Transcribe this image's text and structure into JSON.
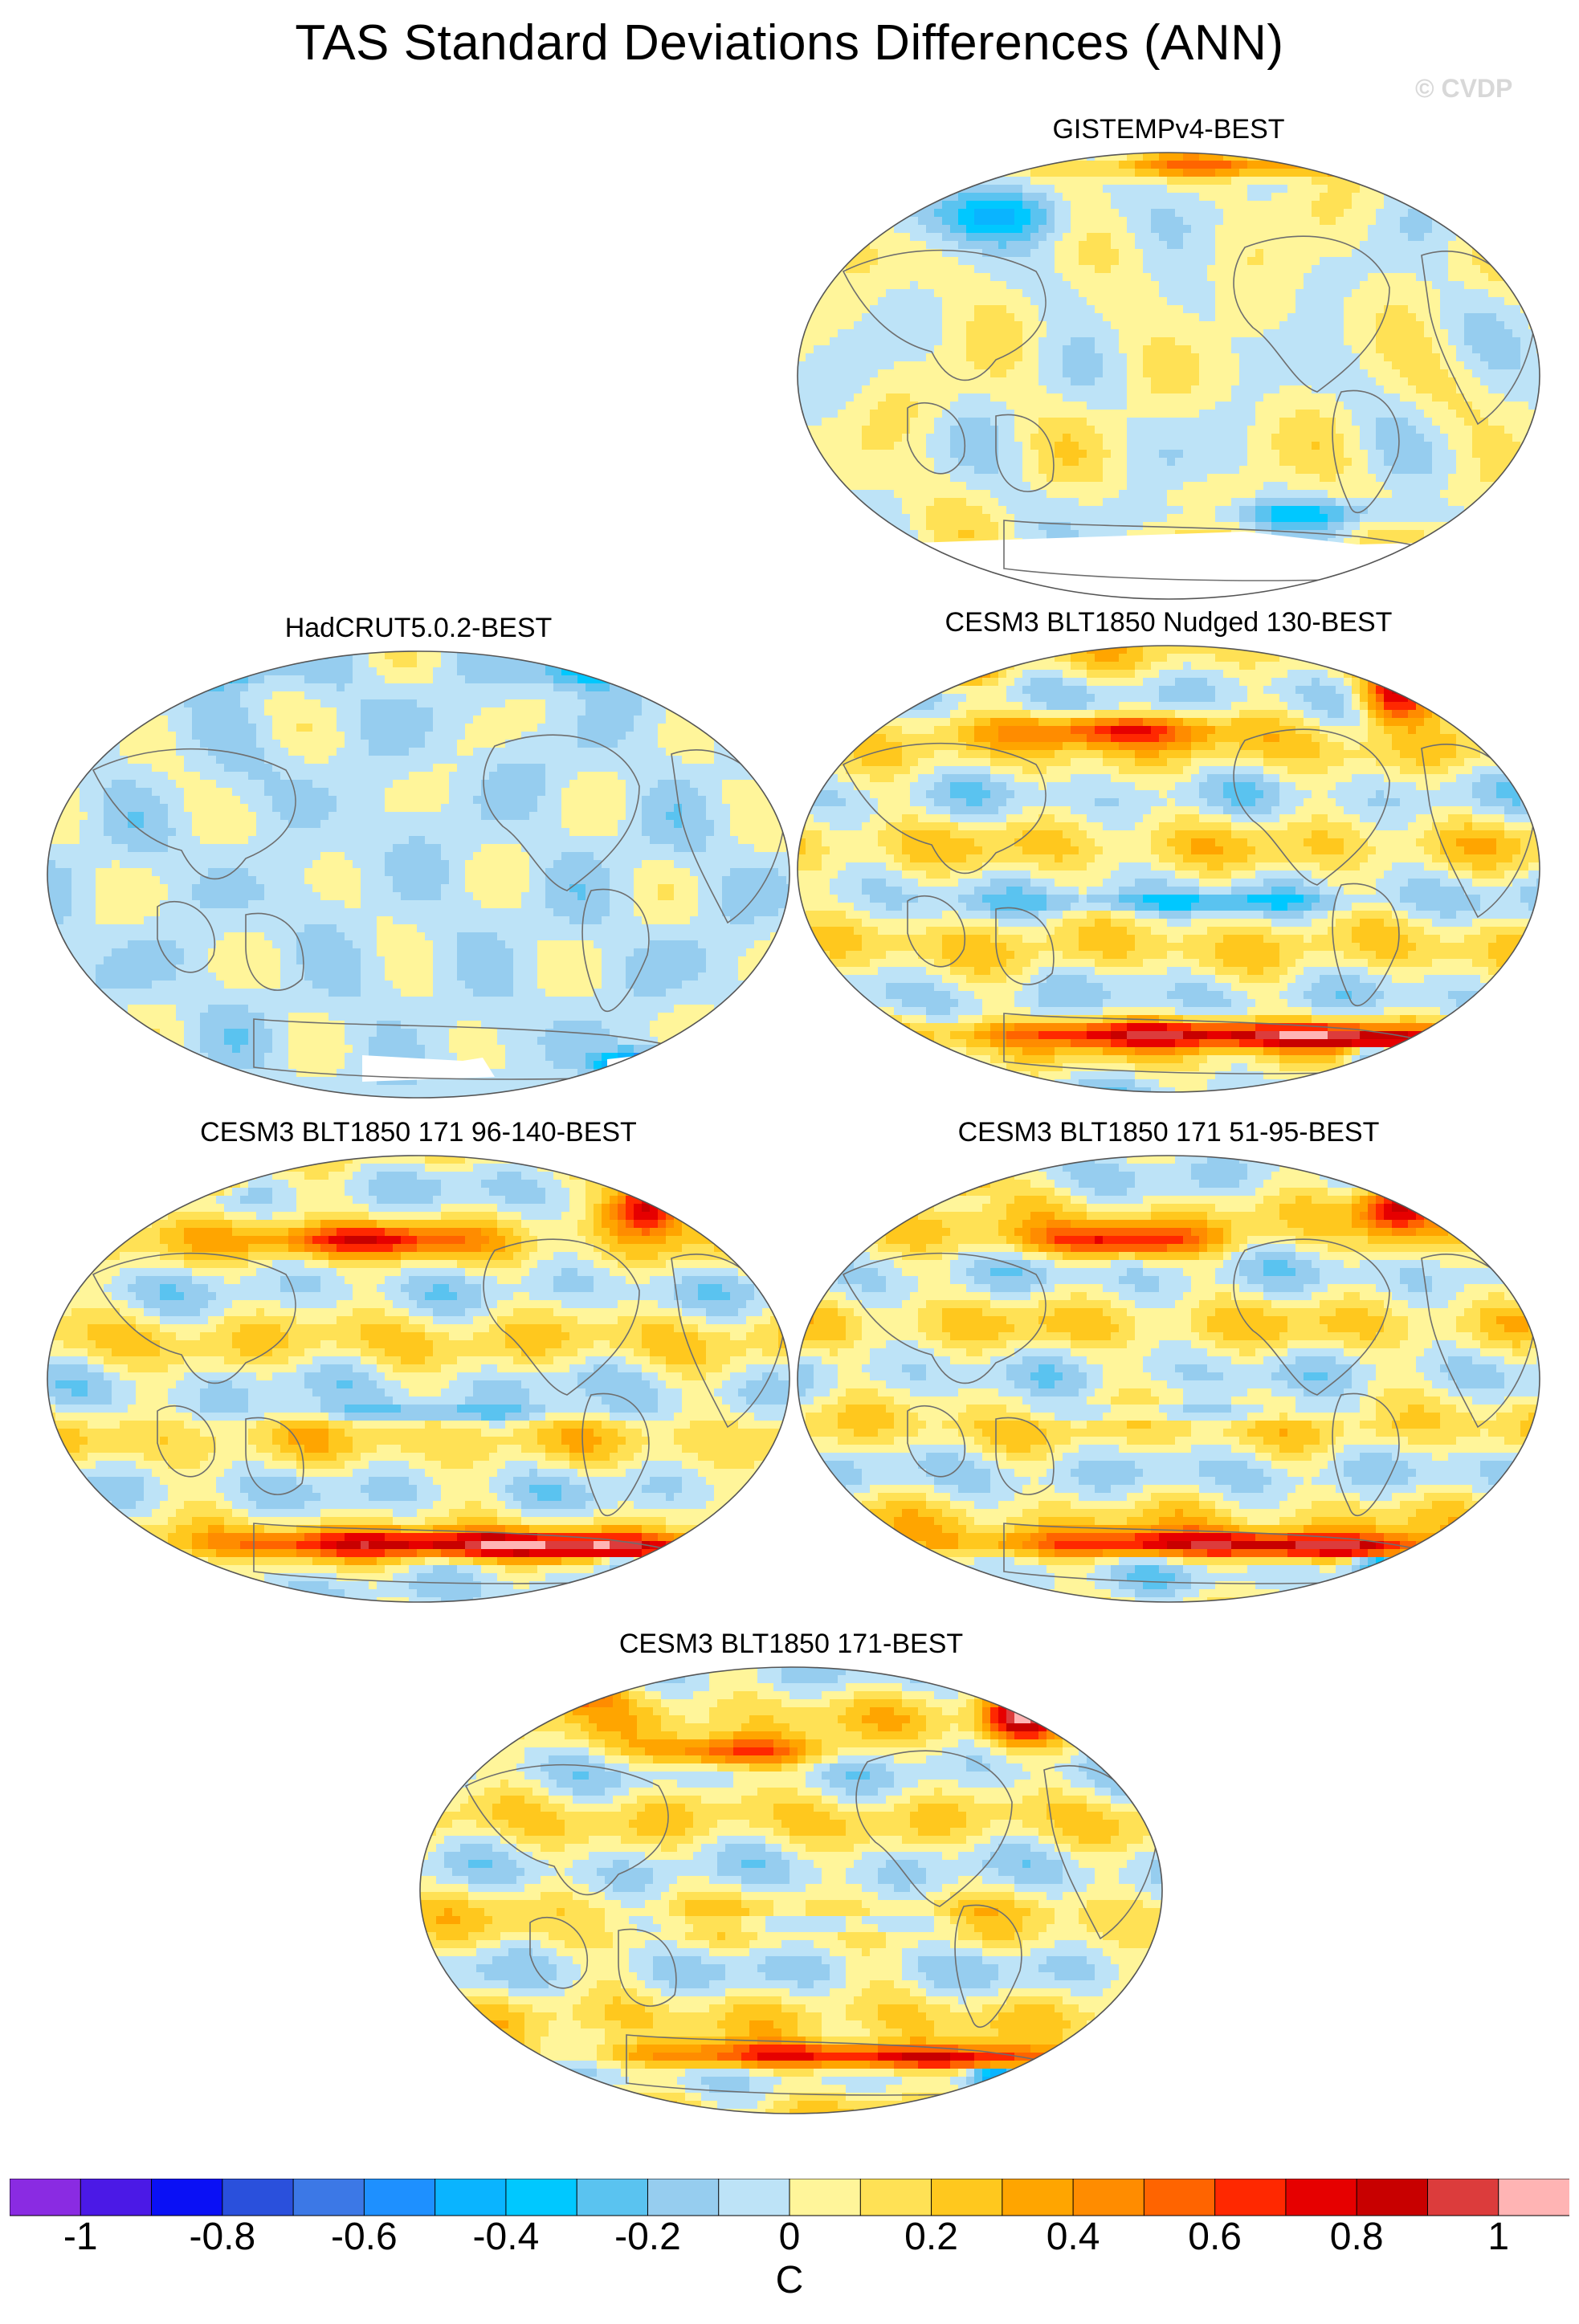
{
  "figure": {
    "title": "TAS Standard Deviations Differences (ANN)",
    "watermark": "© CVDP"
  },
  "panels": [
    {
      "id": "gistemp",
      "title": "GISTEMPv4-BEST",
      "style": "obs_gistemp"
    },
    {
      "id": "hadcrut",
      "title": "HadCRUT5.0.2-BEST",
      "style": "obs_hadcrut"
    },
    {
      "id": "nudged",
      "title": "CESM3 BLT1850 Nudged 130-BEST",
      "style": "model"
    },
    {
      "id": "m96",
      "title": "CESM3 BLT1850 171 96-140-BEST",
      "style": "model"
    },
    {
      "id": "m51",
      "title": "CESM3 BLT1850 171 51-95-BEST",
      "style": "model"
    },
    {
      "id": "m171",
      "title": "CESM3 BLT1850 171-BEST",
      "style": "model"
    }
  ],
  "colorbar": {
    "unit": "C",
    "range": [
      -1.1,
      1.1
    ],
    "step": 0.1,
    "tick_labels": [
      "-1",
      "-0.8",
      "-0.6",
      "-0.4",
      "-0.2",
      "0",
      "0.2",
      "0.4",
      "0.6",
      "0.8",
      "1"
    ],
    "tick_values": [
      -1,
      -0.8,
      -0.6,
      -0.4,
      -0.2,
      0,
      0.2,
      0.4,
      0.6,
      0.8,
      1
    ],
    "colors": [
      "#8a2be2",
      "#4b19e6",
      "#0a10f5",
      "#2a50dc",
      "#3c78e6",
      "#1e90ff",
      "#0ab4ff",
      "#00c8ff",
      "#5ac3f0",
      "#96cdef",
      "#bde3f7",
      "#fff59a",
      "#ffe155",
      "#ffc81e",
      "#ffa500",
      "#ff8c00",
      "#ff6400",
      "#ff2800",
      "#e60000",
      "#c80000",
      "#dc3c3c",
      "#ffb4b4"
    ]
  }
}
